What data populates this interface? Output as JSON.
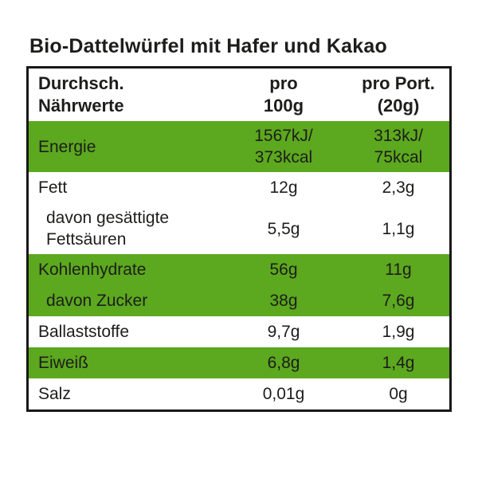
{
  "title": "Bio-Dattelwürfel mit Hafer und Kakao",
  "colors": {
    "highlight_green": "#5CA81E",
    "text": "#1D1D1B",
    "border": "#181818",
    "background": "#FFFFFF"
  },
  "table": {
    "header": {
      "nutrients": "Durchsch.\nNährwerte",
      "per_100g": "pro\n100g",
      "per_portion": "pro Port.\n(20g)"
    },
    "rows": [
      {
        "label": "Energie",
        "per_100g": "1567kJ/\n373kcal",
        "per_portion": "313kJ/\n75kcal",
        "highlight": true,
        "indent": false
      },
      {
        "label": "Fett",
        "per_100g": "12g",
        "per_portion": "2,3g",
        "highlight": false,
        "indent": false
      },
      {
        "label": "davon gesättigte\nFettsäuren",
        "per_100g": "5,5g",
        "per_portion": "1,1g",
        "highlight": false,
        "indent": true
      },
      {
        "label": "Kohlenhydrate",
        "per_100g": "56g",
        "per_portion": "11g",
        "highlight": true,
        "indent": false
      },
      {
        "label": "davon Zucker",
        "per_100g": "38g",
        "per_portion": "7,6g",
        "highlight": true,
        "indent": true
      },
      {
        "label": "Ballaststoffe",
        "per_100g": "9,7g",
        "per_portion": "1,9g",
        "highlight": false,
        "indent": false
      },
      {
        "label": "Eiweiß",
        "per_100g": "6,8g",
        "per_portion": "1,4g",
        "highlight": true,
        "indent": false
      },
      {
        "label": "Salz",
        "per_100g": "0,01g",
        "per_portion": "0g",
        "highlight": false,
        "indent": false
      }
    ]
  }
}
